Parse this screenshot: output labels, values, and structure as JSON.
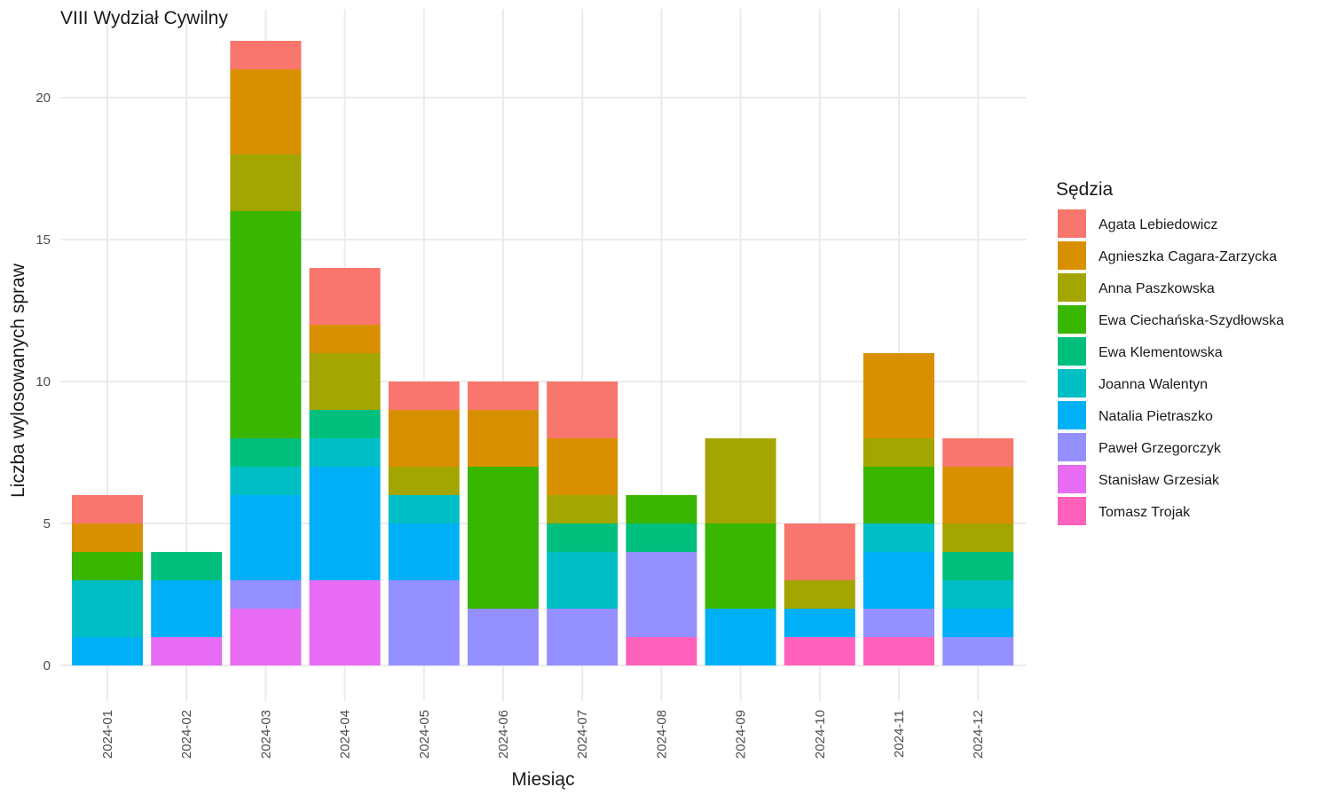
{
  "chart_data": {
    "type": "bar",
    "stacked": true,
    "title": "VIII Wydział Cywilny",
    "xlabel": "Miesiąc",
    "ylabel": "Liczba wylosowanych spraw",
    "ylim": [
      0,
      22
    ],
    "yticks": [
      0,
      5,
      10,
      15,
      20
    ],
    "grid": true,
    "legend_title": "Sędzia",
    "legend_position": "right",
    "categories": [
      "2024-01",
      "2024-02",
      "2024-03",
      "2024-04",
      "2024-05",
      "2024-06",
      "2024-07",
      "2024-08",
      "2024-09",
      "2024-10",
      "2024-11",
      "2024-12"
    ],
    "series": [
      {
        "name": "Agata Lebiedowicz",
        "color": "#F8766D",
        "values": [
          1,
          0,
          1,
          2,
          1,
          1,
          2,
          0,
          0,
          2,
          0,
          1
        ]
      },
      {
        "name": "Agnieszka Cagara-Zarzycka",
        "color": "#D89000",
        "values": [
          1,
          0,
          3,
          1,
          2,
          2,
          2,
          0,
          0,
          0,
          3,
          2
        ]
      },
      {
        "name": "Anna Paszkowska",
        "color": "#A3A500",
        "values": [
          0,
          0,
          2,
          2,
          1,
          0,
          1,
          0,
          3,
          1,
          1,
          1
        ]
      },
      {
        "name": "Ewa Ciechańska-Szydłowska",
        "color": "#39B600",
        "values": [
          1,
          0,
          8,
          0,
          0,
          5,
          0,
          1,
          3,
          0,
          2,
          0
        ]
      },
      {
        "name": "Ewa Klementowska",
        "color": "#00BF7D",
        "values": [
          0,
          1,
          1,
          1,
          0,
          0,
          1,
          1,
          0,
          0,
          0,
          1
        ]
      },
      {
        "name": "Joanna Walentyn",
        "color": "#00BFC4",
        "values": [
          2,
          0,
          1,
          1,
          1,
          0,
          2,
          0,
          0,
          0,
          1,
          1
        ]
      },
      {
        "name": "Natalia Pietraszko",
        "color": "#00B0F6",
        "values": [
          1,
          2,
          3,
          4,
          2,
          0,
          0,
          0,
          2,
          1,
          2,
          1
        ]
      },
      {
        "name": "Paweł Grzegorczyk",
        "color": "#9590FF",
        "values": [
          0,
          0,
          1,
          0,
          3,
          2,
          2,
          3,
          0,
          0,
          1,
          1
        ]
      },
      {
        "name": "Stanisław Grzesiak",
        "color": "#E76BF3",
        "values": [
          0,
          1,
          2,
          3,
          0,
          0,
          0,
          0,
          0,
          0,
          0,
          0
        ]
      },
      {
        "name": "Tomasz Trojak",
        "color": "#FF62BC",
        "values": [
          0,
          0,
          0,
          0,
          0,
          0,
          0,
          1,
          0,
          1,
          1,
          0
        ]
      }
    ]
  }
}
